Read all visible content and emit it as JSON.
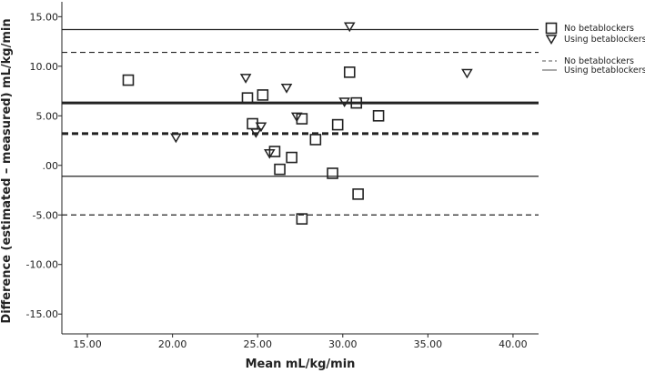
{
  "chart_data": {
    "type": "scatter",
    "title": "",
    "xlabel": "Mean mL/kg/min",
    "ylabel": "Difference (estimated – measured) mL/kg/min",
    "xlim": [
      13.5,
      41.5
    ],
    "ylim": [
      -17.0,
      16.5
    ],
    "x_ticks": [
      15,
      20,
      25,
      30,
      35,
      40
    ],
    "x_tick_labels": [
      "15.00",
      "20.00",
      "25.00",
      "30.00",
      "35.00",
      "40.00"
    ],
    "y_ticks": [
      15,
      10,
      5,
      0,
      -5,
      -10,
      -15
    ],
    "y_tick_labels": [
      "15.00",
      "10.00",
      "5.00",
      ".00",
      "-5.00",
      "-10.00",
      "-15.00"
    ],
    "series": [
      {
        "name": "No betablockers",
        "marker": "square",
        "points": [
          {
            "x": 17.4,
            "y": 8.6
          },
          {
            "x": 24.4,
            "y": 6.8
          },
          {
            "x": 25.3,
            "y": 7.1
          },
          {
            "x": 24.7,
            "y": 4.2
          },
          {
            "x": 26.0,
            "y": 1.4
          },
          {
            "x": 26.3,
            "y": -0.4
          },
          {
            "x": 27.0,
            "y": 0.8
          },
          {
            "x": 27.6,
            "y": 4.7
          },
          {
            "x": 28.4,
            "y": 2.6
          },
          {
            "x": 29.4,
            "y": -0.8
          },
          {
            "x": 29.7,
            "y": 4.1
          },
          {
            "x": 30.4,
            "y": 9.4
          },
          {
            "x": 30.8,
            "y": 6.3
          },
          {
            "x": 30.9,
            "y": -2.9
          },
          {
            "x": 32.1,
            "y": 5.0
          },
          {
            "x": 27.6,
            "y": -5.4
          }
        ]
      },
      {
        "name": "Using betablockers",
        "marker": "triangle-down",
        "points": [
          {
            "x": 20.2,
            "y": 2.8
          },
          {
            "x": 24.3,
            "y": 8.8
          },
          {
            "x": 24.9,
            "y": 3.3
          },
          {
            "x": 25.2,
            "y": 3.9
          },
          {
            "x": 25.7,
            "y": 1.2
          },
          {
            "x": 26.7,
            "y": 7.8
          },
          {
            "x": 27.3,
            "y": 4.9
          },
          {
            "x": 30.1,
            "y": 6.4
          },
          {
            "x": 30.4,
            "y": 14.0
          },
          {
            "x": 37.3,
            "y": 9.3
          }
        ]
      }
    ],
    "reference_lines": [
      {
        "group": "Using betablockers",
        "role": "mean",
        "y": 6.3,
        "style": "solid",
        "weight": "thick"
      },
      {
        "group": "Using betablockers",
        "role": "upper limit",
        "y": 13.7,
        "style": "solid",
        "weight": "thin"
      },
      {
        "group": "Using betablockers",
        "role": "lower limit",
        "y": -1.1,
        "style": "solid",
        "weight": "thin"
      },
      {
        "group": "No betablockers",
        "role": "mean",
        "y": 3.2,
        "style": "dashed",
        "weight": "thick"
      },
      {
        "group": "No betablockers",
        "role": "upper limit",
        "y": 11.4,
        "style": "dashed",
        "weight": "thin"
      },
      {
        "group": "No betablockers",
        "role": "lower limit",
        "y": -5.0,
        "style": "dashed",
        "weight": "thin"
      }
    ],
    "legend": {
      "placement": "top-right",
      "marker_entries": [
        {
          "label": "No betablockers",
          "marker": "square"
        },
        {
          "label": "Using betablockers",
          "marker": "triangle-down"
        }
      ],
      "line_entries": [
        {
          "label": "No betablockers",
          "style": "dashed"
        },
        {
          "label": "Using betablockers",
          "style": "solid"
        }
      ]
    }
  }
}
